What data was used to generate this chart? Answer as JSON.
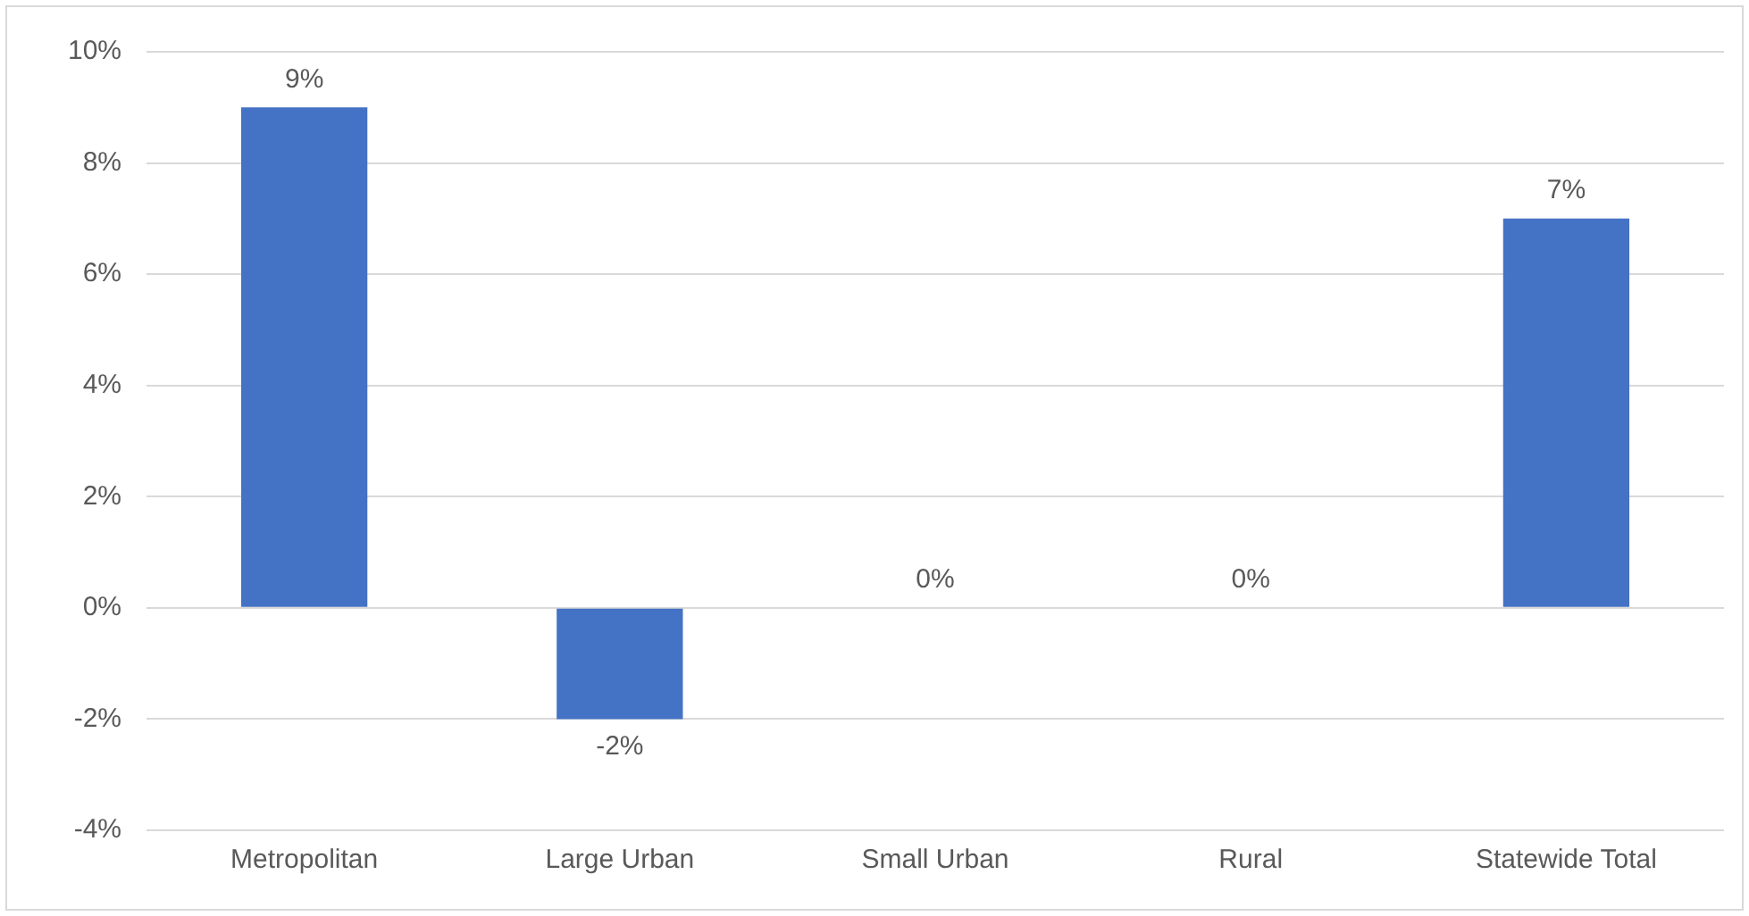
{
  "chart_data": {
    "type": "bar",
    "categories": [
      "Metropolitan",
      "Large Urban",
      "Small Urban",
      "Rural",
      "Statewide Total"
    ],
    "values": [
      9,
      -2,
      0,
      0,
      7
    ],
    "color": "#4472c4",
    "value_labels": [
      "9%",
      "-2%",
      "0%",
      "0%",
      "7%"
    ],
    "ylim": [
      -4,
      10
    ],
    "yticks": [
      {
        "value": -4,
        "label": "-4%"
      },
      {
        "value": -2,
        "label": "-2%"
      },
      {
        "value": 0,
        "label": "0%"
      },
      {
        "value": 2,
        "label": "2%"
      },
      {
        "value": 4,
        "label": "4%"
      },
      {
        "value": 6,
        "label": "6%"
      },
      {
        "value": 8,
        "label": "8%"
      },
      {
        "value": 10,
        "label": "10%"
      }
    ],
    "grid": "y",
    "legend": false
  }
}
